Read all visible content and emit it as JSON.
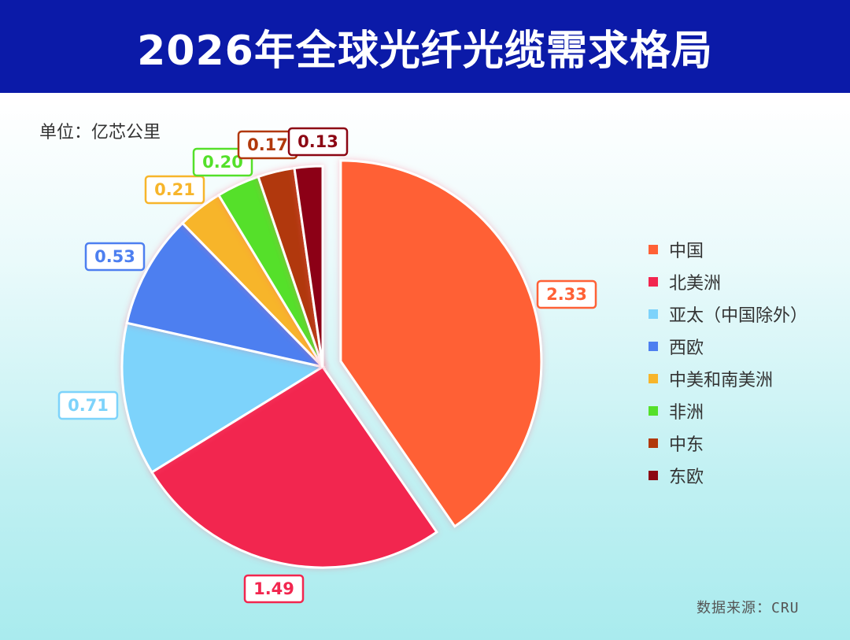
{
  "header": {
    "title": "2026年全球光纤光缆需求格局"
  },
  "unit_label": "单位：亿芯公里",
  "source_label": "数据来源：CRU",
  "chart_data": {
    "type": "pie",
    "title": "2026年全球光纤光缆需求格局",
    "unit": "亿芯公里",
    "legend_position": "right",
    "slices": [
      {
        "label": "中国",
        "value": 2.33,
        "value_text": "2.33",
        "color": "#ff6136",
        "exploded": true
      },
      {
        "label": "北美洲",
        "value": 1.49,
        "value_text": "1.49",
        "color": "#f2264f"
      },
      {
        "label": "亚太（中国除外）",
        "value": 0.71,
        "value_text": "0.71",
        "color": "#7dd3fb"
      },
      {
        "label": "西欧",
        "value": 0.53,
        "value_text": "0.53",
        "color": "#4d7ff0"
      },
      {
        "label": "中美和南美洲",
        "value": 0.21,
        "value_text": "0.21",
        "color": "#f7b52b"
      },
      {
        "label": "非洲",
        "value": 0.2,
        "value_text": "0.20",
        "color": "#55e02a"
      },
      {
        "label": "中东",
        "value": 0.17,
        "value_text": "0.17",
        "color": "#b1380b"
      },
      {
        "label": "东欧",
        "value": 0.13,
        "value_text": "0.13",
        "color": "#8c0613"
      }
    ]
  }
}
